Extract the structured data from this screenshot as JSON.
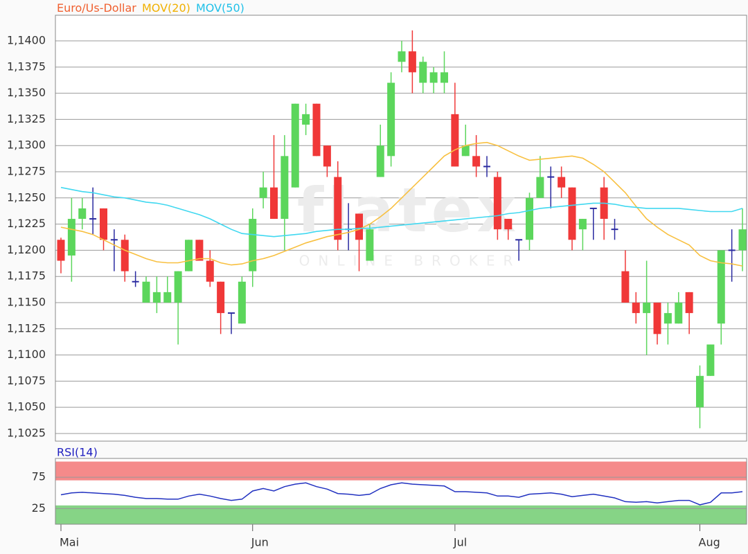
{
  "chart_data": [
    {
      "type": "candlestick",
      "series": [
        {
          "name": "Euro/Us-Dollar",
          "color": "#f06030",
          "up_color": "#5cd65c",
          "down_color": "#f03838",
          "doji_color": "#2a2aa0",
          "open": [
            1.121,
            1.1195,
            1.123,
            1.123,
            1.124,
            1.121,
            1.121,
            1.117,
            1.115,
            1.115,
            1.115,
            1.115,
            1.118,
            1.121,
            1.119,
            1.117,
            1.114,
            1.113,
            1.118,
            1.125,
            1.126,
            1.123,
            1.126,
            1.132,
            1.134,
            1.13,
            1.127,
            1.122,
            1.1235,
            1.119,
            1.127,
            1.129,
            1.138,
            1.139,
            1.136,
            1.136,
            1.136,
            1.133,
            1.129,
            1.129,
            1.128,
            1.127,
            1.123,
            1.121,
            1.121,
            1.125,
            1.127,
            1.127,
            1.126,
            1.122,
            1.124,
            1.126,
            1.122,
            1.118,
            1.115,
            1.114,
            1.115,
            1.113,
            1.113,
            1.116,
            1.105,
            1.108,
            1.113,
            1.12,
            1.12
          ],
          "high": [
            1.1212,
            1.125,
            1.125,
            1.126,
            1.124,
            1.122,
            1.1215,
            1.118,
            1.1175,
            1.1175,
            1.1175,
            1.118,
            1.121,
            1.121,
            1.12,
            1.117,
            1.114,
            1.1175,
            1.124,
            1.1275,
            1.131,
            1.131,
            1.134,
            1.134,
            1.134,
            1.13,
            1.1285,
            1.1245,
            1.1235,
            1.1225,
            1.132,
            1.137,
            1.14,
            1.141,
            1.1385,
            1.1375,
            1.139,
            1.136,
            1.132,
            1.131,
            1.129,
            1.1275,
            1.123,
            1.121,
            1.1255,
            1.129,
            1.128,
            1.128,
            1.126,
            1.123,
            1.124,
            1.127,
            1.123,
            1.12,
            1.116,
            1.119,
            1.115,
            1.115,
            1.116,
            1.116,
            1.109,
            1.111,
            1.12,
            1.122,
            1.124
          ],
          "low": [
            1.1178,
            1.117,
            1.122,
            1.1215,
            1.12,
            1.118,
            1.117,
            1.1165,
            1.115,
            1.114,
            1.115,
            1.111,
            1.118,
            1.119,
            1.1165,
            1.112,
            1.112,
            1.113,
            1.1165,
            1.124,
            1.123,
            1.12,
            1.126,
            1.131,
            1.129,
            1.127,
            1.12,
            1.12,
            1.118,
            1.119,
            1.127,
            1.128,
            1.137,
            1.135,
            1.135,
            1.135,
            1.135,
            1.128,
            1.129,
            1.127,
            1.127,
            1.121,
            1.121,
            1.119,
            1.12,
            1.125,
            1.124,
            1.125,
            1.12,
            1.12,
            1.121,
            1.121,
            1.121,
            1.115,
            1.113,
            1.11,
            1.111,
            1.111,
            1.113,
            1.112,
            1.103,
            1.108,
            1.111,
            1.117,
            1.118
          ],
          "close": [
            1.119,
            1.123,
            1.124,
            1.123,
            1.121,
            1.121,
            1.118,
            1.117,
            1.117,
            1.116,
            1.116,
            1.118,
            1.121,
            1.119,
            1.117,
            1.114,
            1.114,
            1.117,
            1.123,
            1.126,
            1.123,
            1.129,
            1.134,
            1.133,
            1.129,
            1.128,
            1.121,
            1.122,
            1.121,
            1.122,
            1.13,
            1.136,
            1.139,
            1.137,
            1.138,
            1.137,
            1.137,
            1.128,
            1.13,
            1.128,
            1.128,
            1.122,
            1.122,
            1.121,
            1.125,
            1.127,
            1.127,
            1.126,
            1.121,
            1.123,
            1.124,
            1.123,
            1.122,
            1.115,
            1.114,
            1.115,
            1.112,
            1.114,
            1.115,
            1.114,
            1.108,
            1.111,
            1.12,
            1.12,
            1.122
          ]
        },
        {
          "name": "MOV(20)",
          "color": "#f8c040",
          "text_color": "#f0b000",
          "values": [
            1.1222,
            1.122,
            1.1218,
            1.1215,
            1.121,
            1.1205,
            1.12,
            1.1196,
            1.1192,
            1.1189,
            1.1188,
            1.1188,
            1.119,
            1.1192,
            1.1192,
            1.1188,
            1.1186,
            1.1187,
            1.119,
            1.1192,
            1.1195,
            1.1199,
            1.1203,
            1.1207,
            1.121,
            1.1213,
            1.1215,
            1.1217,
            1.122,
            1.1225,
            1.1232,
            1.124,
            1.125,
            1.126,
            1.127,
            1.128,
            1.129,
            1.1296,
            1.13,
            1.1302,
            1.1303,
            1.13,
            1.1295,
            1.129,
            1.1286,
            1.1287,
            1.1288,
            1.1289,
            1.129,
            1.1288,
            1.1282,
            1.1275,
            1.1265,
            1.1255,
            1.1242,
            1.123,
            1.1222,
            1.1215,
            1.121,
            1.1205,
            1.1195,
            1.119,
            1.1188,
            1.1187,
            1.1185
          ]
        },
        {
          "name": "MOV(50)",
          "color": "#40d8f0",
          "text_color": "#20c0e8",
          "values": [
            1.126,
            1.1258,
            1.1256,
            1.1255,
            1.1253,
            1.1251,
            1.125,
            1.1248,
            1.1246,
            1.1245,
            1.1243,
            1.124,
            1.1237,
            1.1234,
            1.123,
            1.1225,
            1.122,
            1.1216,
            1.1215,
            1.1214,
            1.1213,
            1.1214,
            1.1215,
            1.1216,
            1.1218,
            1.1219,
            1.122,
            1.122,
            1.1221,
            1.1221,
            1.1222,
            1.1223,
            1.1224,
            1.1225,
            1.1226,
            1.1227,
            1.1228,
            1.1229,
            1.123,
            1.1231,
            1.1232,
            1.1233,
            1.1235,
            1.1236,
            1.1238,
            1.124,
            1.1241,
            1.1242,
            1.1243,
            1.1244,
            1.1245,
            1.1245,
            1.1244,
            1.1242,
            1.1241,
            1.124,
            1.124,
            1.124,
            1.124,
            1.1239,
            1.1238,
            1.1237,
            1.1237,
            1.1237,
            1.124
          ]
        }
      ],
      "ylim": [
        1.10177,
        1.14245
      ],
      "yticks": [
        {
          "value": 1.1025,
          "label": "1,1025"
        },
        {
          "value": 1.105,
          "label": "1,1050"
        },
        {
          "value": 1.1075,
          "label": "1,1075"
        },
        {
          "value": 1.11,
          "label": "1,1100"
        },
        {
          "value": 1.1125,
          "label": "1,1125"
        },
        {
          "value": 1.115,
          "label": "1,1150"
        },
        {
          "value": 1.1175,
          "label": "1,1175"
        },
        {
          "value": 1.12,
          "label": "1,1200"
        },
        {
          "value": 1.1225,
          "label": "1,1225"
        },
        {
          "value": 1.125,
          "label": "1,1250"
        },
        {
          "value": 1.1275,
          "label": "1,1275"
        },
        {
          "value": 1.13,
          "label": "1,1300"
        },
        {
          "value": 1.1325,
          "label": "1,1325"
        },
        {
          "value": 1.135,
          "label": "1,1350"
        },
        {
          "value": 1.1375,
          "label": "1,1375"
        },
        {
          "value": 1.14,
          "label": "1,1400"
        }
      ],
      "grid": true,
      "watermark": {
        "logo": "flatex",
        "tagline": "ONLINE BROKER"
      }
    },
    {
      "type": "line",
      "title": "RSI(14)",
      "categories": [
        "Mai",
        null,
        null,
        null,
        null,
        null,
        null,
        null,
        null,
        null,
        null,
        null,
        null,
        null,
        null,
        null,
        null,
        null,
        "Jun",
        null,
        null,
        null,
        null,
        null,
        null,
        null,
        null,
        null,
        null,
        null,
        null,
        null,
        null,
        null,
        null,
        null,
        null,
        "Jul",
        null,
        null,
        null,
        null,
        null,
        null,
        null,
        null,
        null,
        null,
        null,
        null,
        null,
        null,
        null,
        null,
        null,
        null,
        null,
        null,
        null,
        null,
        "Aug",
        null,
        null,
        null,
        null
      ],
      "series": [
        {
          "color": "#2030c0",
          "values": [
            47,
            50,
            51,
            50,
            49,
            48,
            46,
            43,
            41,
            41,
            40,
            40,
            45,
            48,
            45,
            41,
            38,
            40,
            53,
            57,
            53,
            60,
            64,
            66,
            60,
            56,
            49,
            48,
            46,
            48,
            57,
            63,
            66,
            64,
            63,
            62,
            61,
            52,
            52,
            51,
            50,
            45,
            45,
            43,
            48,
            49,
            50,
            48,
            44,
            46,
            48,
            45,
            42,
            36,
            35,
            36,
            34,
            36,
            38,
            38,
            31,
            35,
            50,
            50,
            52
          ]
        }
      ],
      "ylim": [
        0,
        105
      ],
      "yticks": [
        25,
        75
      ],
      "bands": [
        {
          "from": 70,
          "to": 100,
          "color": "#f58a8a"
        },
        {
          "from": 0,
          "to": 30,
          "color": "#86d486"
        }
      ]
    }
  ]
}
